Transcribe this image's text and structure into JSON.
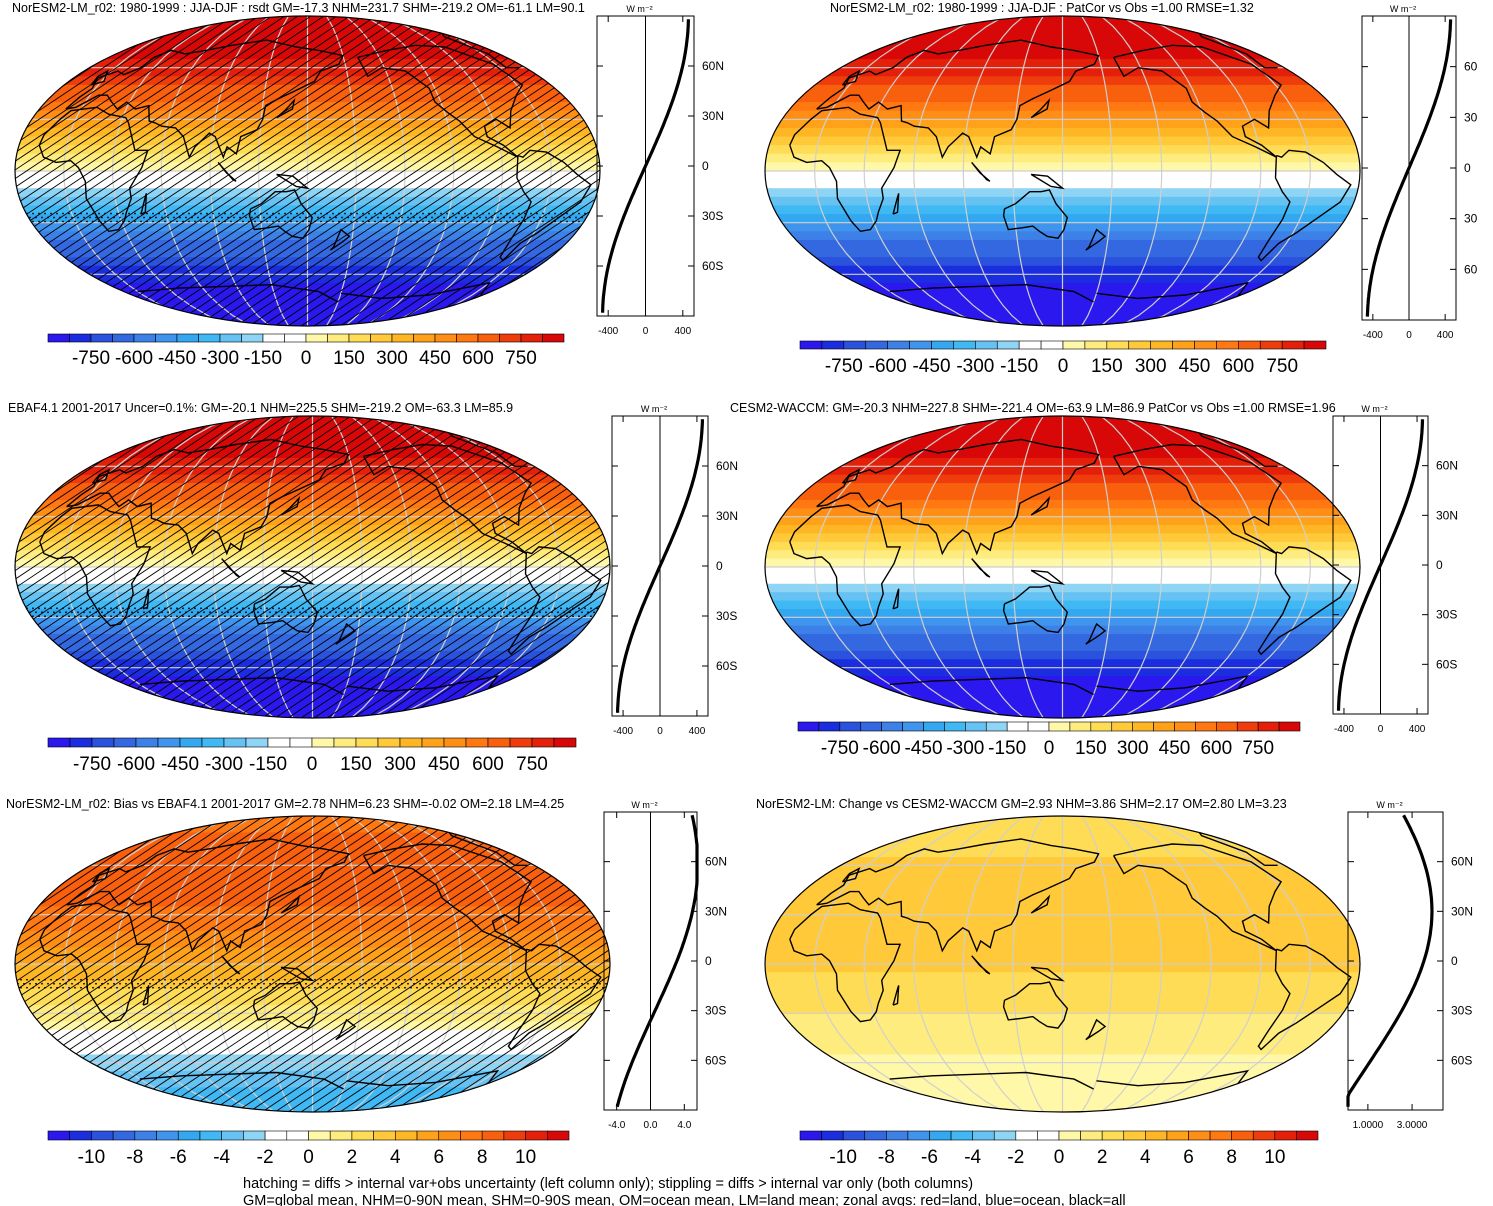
{
  "colors": {
    "ocean_hatch": "#000000",
    "graticule": "#cfcfcf",
    "zonal_all": "#000000",
    "zonal_land": "#d01010",
    "zonal_ocean": "#1030c0"
  },
  "palette": [
    "#2a18ee",
    "#1a2ee0",
    "#2a52dc",
    "#3468e0",
    "#3d80e8",
    "#3f94ee",
    "#33a8f0",
    "#40b8f4",
    "#66c2f2",
    "#8ed4f4",
    "#ffffff",
    "#ffffff",
    "#fff8a8",
    "#ffec7e",
    "#ffdc55",
    "#ffc93a",
    "#ffb624",
    "#ffa21a",
    "#ff8e16",
    "#ff7812",
    "#f8600e",
    "#ee3c0c",
    "#e4200a",
    "#d80808"
  ],
  "panels": [
    {
      "id": "p1",
      "title": "NorESM2-LM_r02: 1980-1999 : JJA-DJF : rsdt GM=-17.3 NHM=231.7 SHM=-219.2 OM=-61.1 LM=90.1",
      "units": "W m⁻²",
      "field_scale": 800,
      "field_offset": 0,
      "field_kind": "sin",
      "hatched": true,
      "stipple_lat": -27,
      "lat_labels": [
        "60N",
        "30N",
        "0",
        "30S",
        "60S"
      ],
      "x_ticks": [
        "-400",
        "0",
        "400"
      ],
      "zonal": {
        "xlim": [
          -520,
          520
        ],
        "kind": "sin",
        "amp": 800,
        "offset": 0,
        "amp_x": 1
      },
      "levels": [
        "-750",
        "-600",
        "-450",
        "-300",
        "-150",
        "0",
        "150",
        "300",
        "450",
        "600",
        "750"
      ]
    },
    {
      "id": "p2",
      "title": "NorESM2-LM_r02: 1980-1999 : JJA-DJF : PatCor vs Obs =1.00 RMSE=1.32",
      "units": "W m⁻²",
      "field_scale": 800,
      "field_offset": 0,
      "field_kind": "sin",
      "hatched": false,
      "stipple_lat": null,
      "lat_labels": [
        "60",
        "30",
        "0",
        "30",
        "60"
      ],
      "x_ticks": [
        "-400",
        "0",
        "400"
      ],
      "zonal": {
        "xlim": [
          -520,
          520
        ],
        "kind": "sin",
        "amp": 800,
        "offset": 0,
        "amp_x": 1
      },
      "levels": [
        "-750",
        "-600",
        "-450",
        "-300",
        "-150",
        "0",
        "150",
        "300",
        "450",
        "600",
        "750"
      ]
    },
    {
      "id": "p3",
      "title": "EBAF4.1 2001-2017 Uncer=0.1%: GM=-20.1 NHM=225.5 SHM=-219.2 OM=-63.3 LM=85.9",
      "units": "W m⁻²",
      "field_scale": 800,
      "field_offset": 0,
      "field_kind": "sin",
      "hatched": true,
      "stipple_lat": -27,
      "lat_labels": [
        "60N",
        "30N",
        "0",
        "30S",
        "60S"
      ],
      "x_ticks": [
        "-400",
        "0",
        "400"
      ],
      "zonal": {
        "xlim": [
          -520,
          520
        ],
        "kind": "sin",
        "amp": 800,
        "offset": 0,
        "amp_x": 1
      },
      "levels": [
        "-750",
        "-600",
        "-450",
        "-300",
        "-150",
        "0",
        "150",
        "300",
        "450",
        "600",
        "750"
      ]
    },
    {
      "id": "p4",
      "title": "CESM2-WACCM: GM=-20.3 NHM=227.8 SHM=-221.4 OM=-63.9 LM=86.9 PatCor vs Obs =1.00 RMSE=1.96",
      "units": "W m⁻²",
      "field_scale": 800,
      "field_offset": 0,
      "field_kind": "sin",
      "hatched": false,
      "stipple_lat": null,
      "lat_labels": [
        "60N",
        "30N",
        "0",
        "30S",
        "60S"
      ],
      "x_ticks": [
        "-400",
        "0",
        "400"
      ],
      "zonal": {
        "xlim": [
          -520,
          520
        ],
        "kind": "sin",
        "amp": 800,
        "offset": 0,
        "amp_x": 1
      },
      "levels": [
        "-750",
        "-600",
        "-450",
        "-300",
        "-150",
        "0",
        "150",
        "300",
        "450",
        "600",
        "750"
      ]
    },
    {
      "id": "p5",
      "title": "NorESM2-LM_r02: Bias vs EBAF4.1 2001-2017 GM=2.78 NHM=6.23 SHM=-0.02 OM=2.18 LM=4.25",
      "units": "W m⁻²",
      "field_scale": 7,
      "field_offset": 0,
      "field_kind": "bias",
      "hatched": true,
      "stipple_lat": -12,
      "lat_labels": [
        "60N",
        "30N",
        "0",
        "30S",
        "60S"
      ],
      "x_ticks": [
        "-4.0",
        "0.0",
        "4.0"
      ],
      "zonal": {
        "xlim": [
          -5.5,
          5.5
        ],
        "kind": "bias",
        "amp": 1,
        "offset": 0,
        "amp_x": 1
      },
      "levels": [
        "-10",
        "-8",
        "-6",
        "-4",
        "-2",
        "0",
        "2",
        "4",
        "6",
        "8",
        "10"
      ]
    },
    {
      "id": "p6",
      "title": "NorESM2-LM: Change vs CESM2-WACCM GM=2.93 NHM=3.86 SHM=2.17 OM=2.80 LM=3.23",
      "units": "W m⁻²",
      "field_scale": 1,
      "field_offset": 0,
      "field_kind": "change",
      "hatched": false,
      "stipple_lat": null,
      "lat_labels": [
        "60N",
        "30N",
        "0",
        "30S",
        "60S"
      ],
      "x_ticks": [
        "1.0000",
        "3.0000"
      ],
      "zonal": {
        "xlim": [
          0.1,
          4.4
        ],
        "kind": "change",
        "amp": 1,
        "offset": 0,
        "amp_x": 1
      },
      "levels": [
        "-10",
        "-8",
        "-6",
        "-4",
        "-2",
        "0",
        "2",
        "4",
        "6",
        "8",
        "10"
      ]
    }
  ],
  "footer": {
    "line1": "hatching = diffs > internal var+obs uncertainty (left column only); stippling = diffs > internal var only (both columns)",
    "line2": "GM=global mean, NHM=0-90N mean, SHM=0-90S mean, OM=ocean mean, LM=land mean; zonal avgs: red=land, blue=ocean, black=all"
  }
}
